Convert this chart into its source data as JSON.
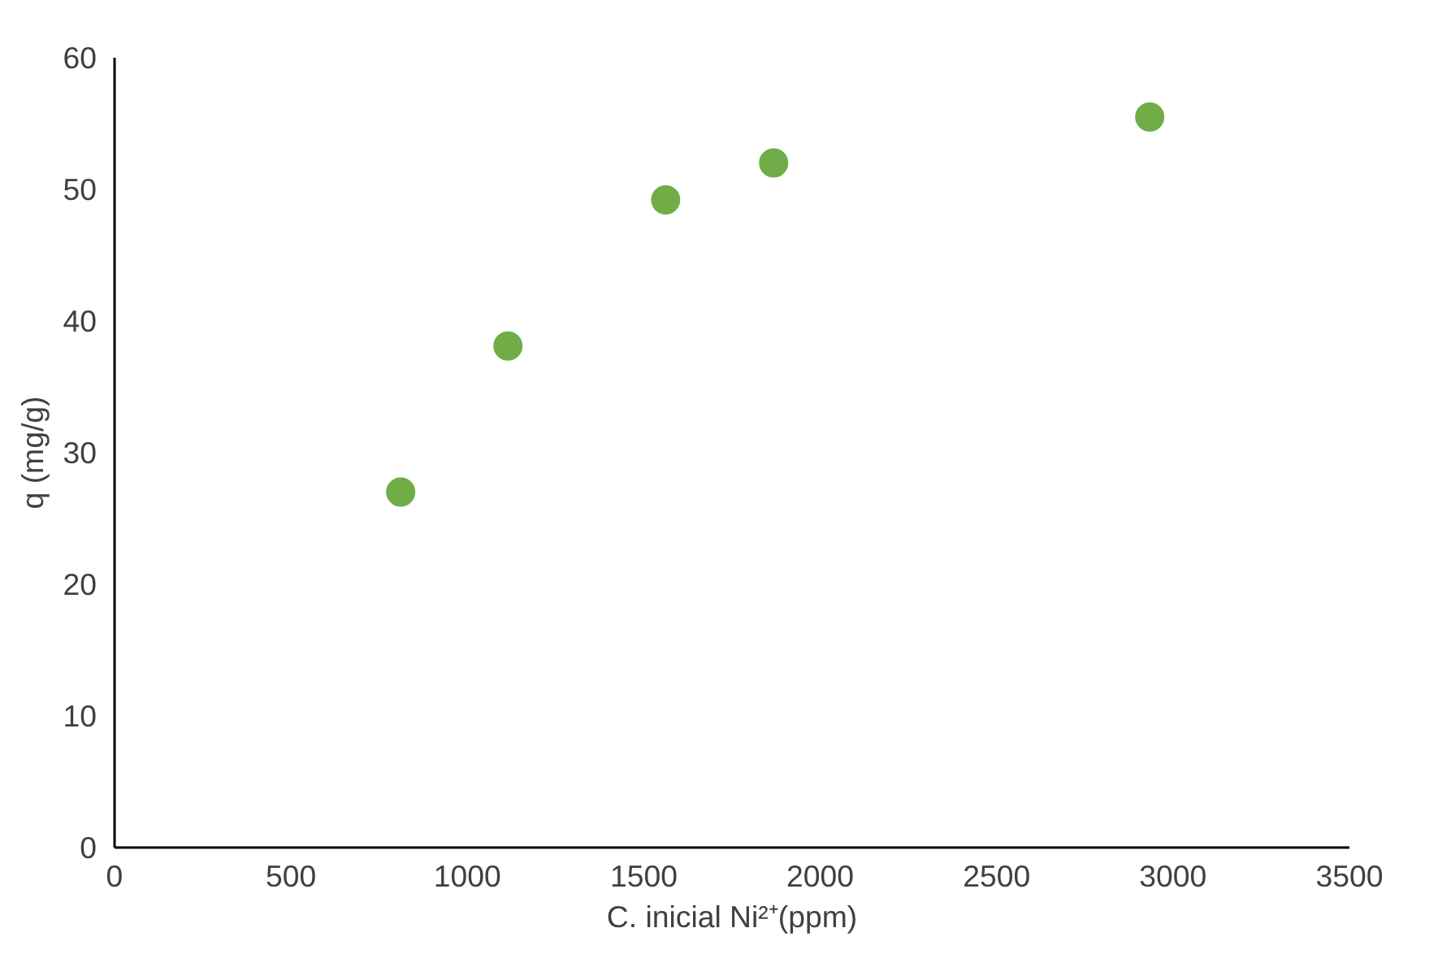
{
  "chart_data": {
    "type": "scatter",
    "xlabel": "C. inicial Ni²⁺(ppm)",
    "ylabel": "q (mg/g)",
    "x": [
      811,
      1115,
      1562,
      1868,
      2934
    ],
    "series": [
      {
        "color": "#70ad47",
        "values": [
          27.0,
          38.1,
          49.2,
          52.0,
          55.5
        ]
      }
    ],
    "xlim": [
      0,
      3500
    ],
    "xticks": [
      0,
      500,
      1000,
      1500,
      2000,
      2500,
      3000,
      3500
    ],
    "ylim": [
      0,
      60
    ],
    "yticks": [
      0,
      10,
      20,
      30,
      40,
      50,
      60
    ],
    "grid": false,
    "marker": "circle"
  }
}
